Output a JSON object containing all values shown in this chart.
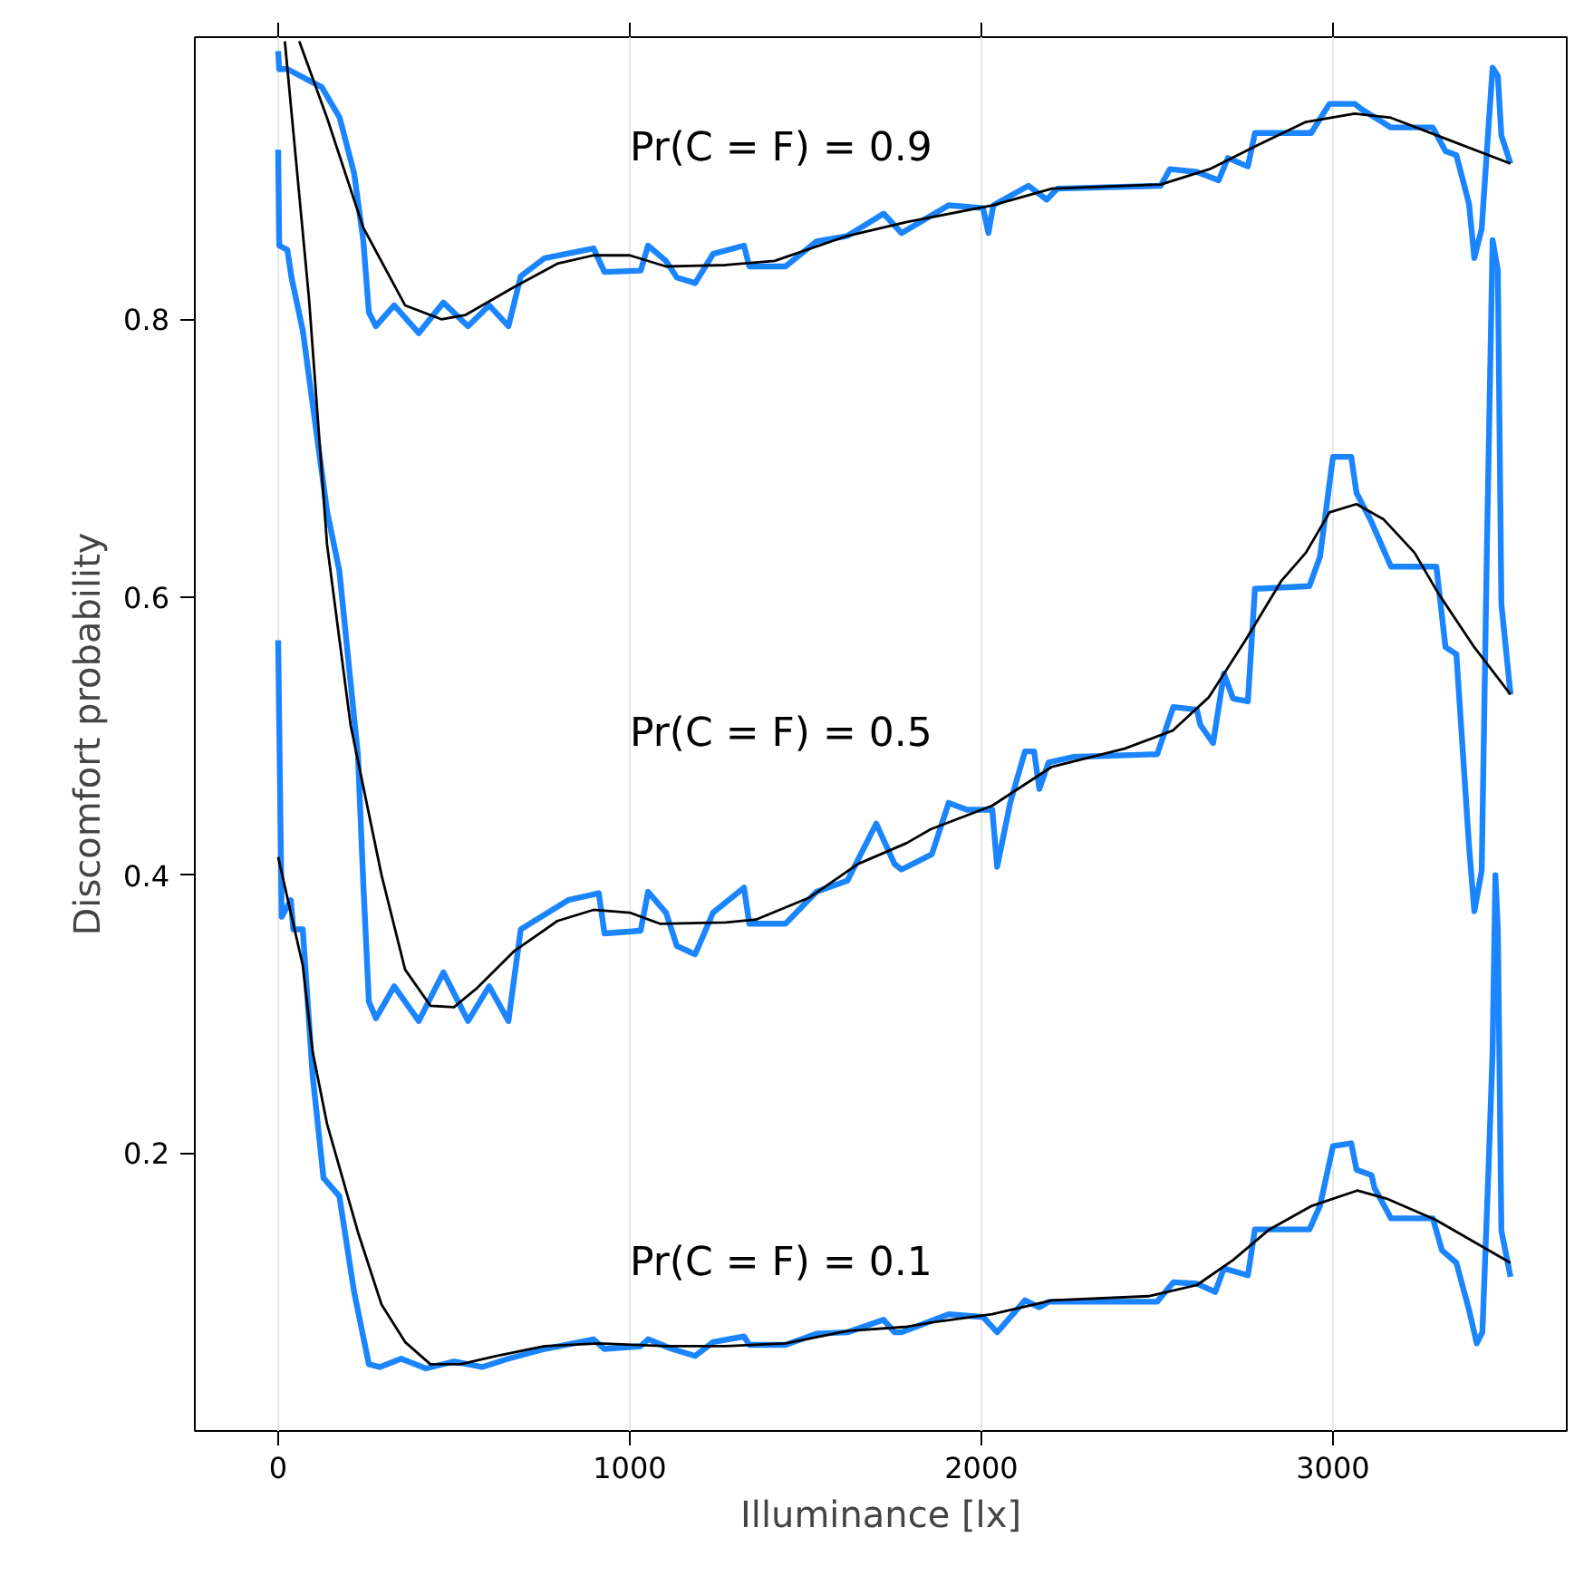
{
  "chart_data": {
    "type": "line",
    "xlabel": "Illuminance [lx]",
    "ylabel": "Discomfort probability",
    "xlim": [
      -237,
      3665
    ],
    "ylim": [
      0.0,
      1.003
    ],
    "xticks": [
      0,
      1000,
      2000,
      3000
    ],
    "yticks": [
      0.2,
      0.4,
      0.6,
      0.8
    ],
    "grid": "x",
    "marker": "none",
    "line_style": "solid",
    "annotations": [
      "Pr(C = F) = 0.9",
      "Pr(C = F) = 0.5",
      "Pr(C = F) = 0.1"
    ],
    "series": [
      {
        "color": "#1a85ff",
        "x": [
          0,
          3,
          26,
          124,
          175,
          216,
          242,
          258,
          278,
          330,
          400,
          470,
          540,
          600,
          655,
          690,
          758,
          897,
          928,
          1031,
          1052,
          1103,
          1134,
          1186,
          1237,
          1325,
          1340,
          1443,
          1531,
          1619,
          1722,
          1773,
          1907,
          2005,
          2020,
          2034,
          2134,
          2186,
          2216,
          2510,
          2536,
          2613,
          2675,
          2701,
          2758,
          2778,
          2938,
          2990,
          3062,
          3082,
          3165,
          3284,
          3320,
          3351,
          3387,
          3402,
          3423,
          3438,
          3454,
          3469,
          3479,
          3505
        ],
        "values": [
          0.993,
          0.98,
          0.98,
          0.967,
          0.945,
          0.905,
          0.857,
          0.805,
          0.795,
          0.81,
          0.79,
          0.812,
          0.795,
          0.81,
          0.795,
          0.831,
          0.844,
          0.851,
          0.834,
          0.835,
          0.853,
          0.842,
          0.83,
          0.826,
          0.847,
          0.853,
          0.838,
          0.838,
          0.856,
          0.86,
          0.876,
          0.862,
          0.882,
          0.88,
          0.862,
          0.882,
          0.896,
          0.886,
          0.894,
          0.896,
          0.908,
          0.906,
          0.9,
          0.916,
          0.91,
          0.934,
          0.934,
          0.955,
          0.955,
          0.951,
          0.938,
          0.938,
          0.921,
          0.918,
          0.883,
          0.844,
          0.865,
          0.922,
          0.981,
          0.975,
          0.932,
          0.912
        ]
      },
      {
        "color": "#000000",
        "x": [
          60,
          139,
          242,
          361,
          464,
          532,
          670,
          794,
          897,
          1000,
          1103,
          1273,
          1412,
          1619,
          1789,
          2031,
          2201,
          2510,
          2649,
          2784,
          2923,
          3062,
          3165,
          3299,
          3505
        ],
        "values": [
          1.0,
          0.945,
          0.866,
          0.81,
          0.8,
          0.803,
          0.823,
          0.84,
          0.846,
          0.846,
          0.838,
          0.839,
          0.842,
          0.86,
          0.87,
          0.882,
          0.894,
          0.897,
          0.908,
          0.925,
          0.942,
          0.948,
          0.945,
          0.932,
          0.912
        ]
      },
      {
        "color": "#1a85ff",
        "x": [
          0,
          3,
          26,
          38,
          70,
          139,
          174,
          227,
          242,
          258,
          278,
          330,
          400,
          470,
          540,
          600,
          655,
          690,
          825,
          912,
          928,
          1031,
          1052,
          1103,
          1134,
          1186,
          1237,
          1325,
          1340,
          1443,
          1531,
          1619,
          1701,
          1753,
          1773,
          1859,
          1907,
          1959,
          2031,
          2045,
          2082,
          2124,
          2150,
          2165,
          2191,
          2260,
          2500,
          2546,
          2613,
          2623,
          2659,
          2690,
          2716,
          2758,
          2778,
          2933,
          2963,
          3000,
          3052,
          3067,
          3108,
          3165,
          3294,
          3320,
          3351,
          3387,
          3402,
          3423,
          3438,
          3454,
          3469,
          3479,
          3505
        ],
        "values": [
          0.922,
          0.853,
          0.85,
          0.83,
          0.792,
          0.662,
          0.619,
          0.486,
          0.395,
          0.309,
          0.297,
          0.32,
          0.295,
          0.33,
          0.295,
          0.32,
          0.295,
          0.361,
          0.382,
          0.387,
          0.358,
          0.36,
          0.388,
          0.373,
          0.349,
          0.343,
          0.373,
          0.391,
          0.365,
          0.365,
          0.388,
          0.396,
          0.437,
          0.408,
          0.404,
          0.415,
          0.452,
          0.447,
          0.447,
          0.406,
          0.452,
          0.489,
          0.489,
          0.462,
          0.481,
          0.485,
          0.487,
          0.521,
          0.519,
          0.508,
          0.495,
          0.545,
          0.527,
          0.525,
          0.606,
          0.608,
          0.629,
          0.701,
          0.701,
          0.675,
          0.655,
          0.622,
          0.622,
          0.564,
          0.559,
          0.421,
          0.374,
          0.403,
          0.638,
          0.857,
          0.835,
          0.595,
          0.53
        ]
      },
      {
        "color": "#000000",
        "x": [
          19,
          88,
          139,
          206,
          294,
          361,
          433,
          500,
          567,
          670,
          794,
          897,
          1000,
          1086,
          1273,
          1359,
          1512,
          1649,
          1787,
          1856,
          2031,
          2201,
          2407,
          2544,
          2647,
          2751,
          2854,
          2923,
          2990,
          3067,
          3144,
          3232,
          3299,
          3402,
          3505
        ],
        "values": [
          1.0,
          0.814,
          0.638,
          0.508,
          0.4,
          0.332,
          0.306,
          0.305,
          0.319,
          0.345,
          0.367,
          0.375,
          0.373,
          0.365,
          0.366,
          0.368,
          0.384,
          0.408,
          0.423,
          0.433,
          0.45,
          0.478,
          0.491,
          0.504,
          0.528,
          0.569,
          0.612,
          0.632,
          0.661,
          0.667,
          0.656,
          0.632,
          0.603,
          0.564,
          0.53
        ]
      },
      {
        "color": "#1a85ff",
        "x": [
          0,
          10,
          36,
          43,
          70,
          98,
          129,
          174,
          216,
          258,
          289,
          350,
          420,
          500,
          580,
          655,
          758,
          897,
          928,
          1031,
          1052,
          1120,
          1186,
          1237,
          1325,
          1340,
          1443,
          1531,
          1619,
          1722,
          1753,
          1773,
          1907,
          2005,
          2045,
          2124,
          2165,
          2191,
          2500,
          2546,
          2613,
          2665,
          2690,
          2758,
          2778,
          2933,
          2963,
          3000,
          3052,
          3067,
          3110,
          3118,
          3165,
          3284,
          3310,
          3351,
          3387,
          3409,
          3425,
          3442,
          3454,
          3462,
          3469,
          3479,
          3505
        ],
        "values": [
          0.569,
          0.37,
          0.382,
          0.361,
          0.361,
          0.256,
          0.182,
          0.169,
          0.1,
          0.048,
          0.046,
          0.052,
          0.045,
          0.05,
          0.046,
          0.052,
          0.059,
          0.066,
          0.059,
          0.061,
          0.066,
          0.059,
          0.054,
          0.064,
          0.068,
          0.062,
          0.062,
          0.07,
          0.071,
          0.08,
          0.071,
          0.071,
          0.084,
          0.082,
          0.071,
          0.094,
          0.089,
          0.093,
          0.093,
          0.107,
          0.106,
          0.1,
          0.117,
          0.112,
          0.145,
          0.145,
          0.162,
          0.205,
          0.207,
          0.188,
          0.184,
          0.175,
          0.153,
          0.153,
          0.13,
          0.121,
          0.087,
          0.063,
          0.071,
          0.186,
          0.273,
          0.4,
          0.361,
          0.144,
          0.111
        ]
      },
      {
        "color": "#000000",
        "x": [
          0,
          70,
          98,
          139,
          227,
          294,
          361,
          433,
          518,
          622,
          758,
          912,
          1103,
          1273,
          1443,
          1619,
          1789,
          1856,
          2031,
          2201,
          2476,
          2613,
          2716,
          2819,
          2940,
          3069,
          3155,
          3292,
          3505
        ],
        "values": [
          0.413,
          0.335,
          0.273,
          0.221,
          0.143,
          0.091,
          0.064,
          0.048,
          0.048,
          0.054,
          0.061,
          0.063,
          0.061,
          0.061,
          0.063,
          0.072,
          0.075,
          0.078,
          0.084,
          0.094,
          0.097,
          0.105,
          0.123,
          0.145,
          0.162,
          0.173,
          0.167,
          0.152,
          0.121
        ]
      }
    ]
  }
}
